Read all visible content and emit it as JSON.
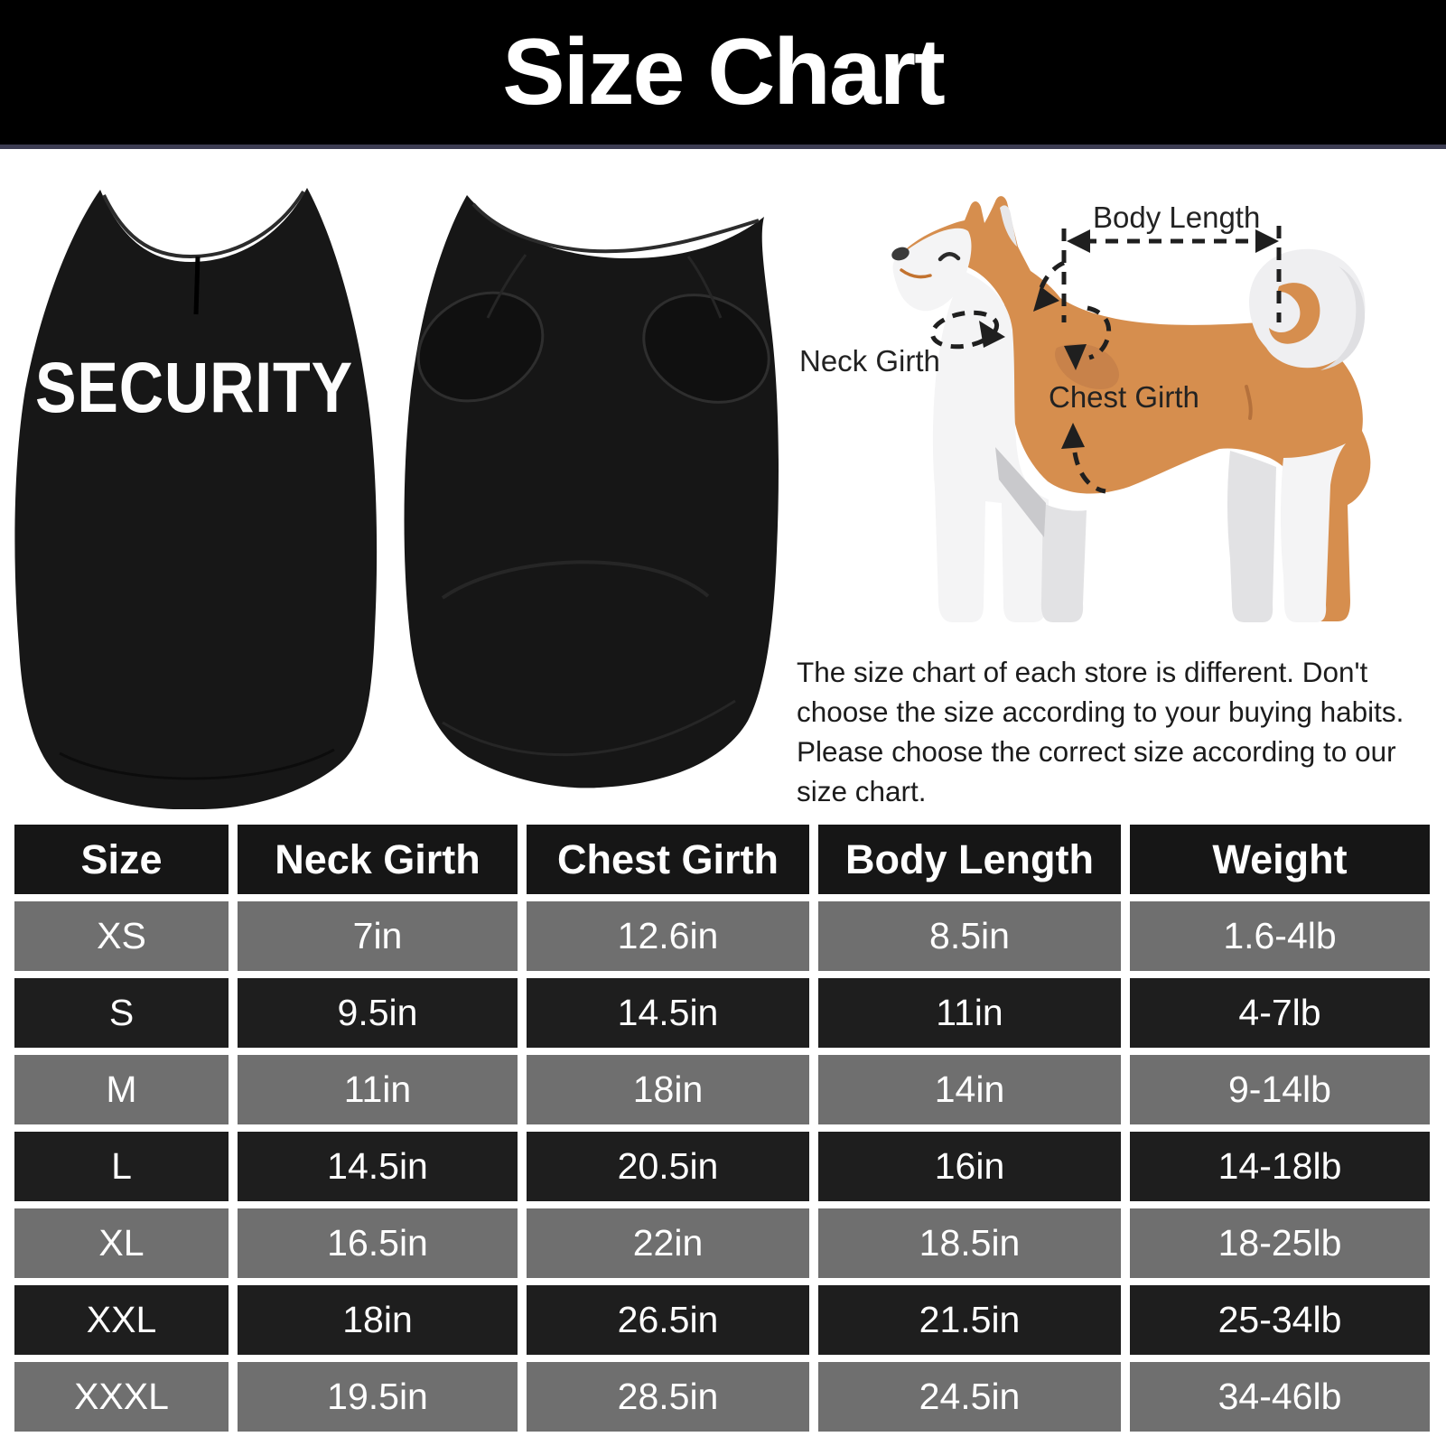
{
  "header": {
    "title": "Size Chart"
  },
  "product": {
    "front_print": "SECURITY"
  },
  "measurement_diagram": {
    "body_length_label": "Body Length",
    "neck_girth_label": "Neck Girth",
    "chest_girth_label": "Chest Girth"
  },
  "description": {
    "lines": [
      "The size chart of each store is different. Don't",
      "choose the size according to your buying habits.",
      "Please choose the correct size according to our",
      "size chart."
    ]
  },
  "chart_data": {
    "type": "table",
    "title": "Size Chart",
    "columns": [
      "Size",
      "Neck Girth",
      "Chest Girth",
      "Body Length",
      "Weight"
    ],
    "rows": [
      [
        "XS",
        "7in",
        "12.6in",
        "8.5in",
        "1.6-4lb"
      ],
      [
        "S",
        "9.5in",
        "14.5in",
        "11in",
        "4-7lb"
      ],
      [
        "M",
        "11in",
        "18in",
        "14in",
        "9-14lb"
      ],
      [
        "L",
        "14.5in",
        "20.5in",
        "16in",
        "14-18lb"
      ],
      [
        "XL",
        "16.5in",
        "22in",
        "18.5in",
        "18-25lb"
      ],
      [
        "XXL",
        "18in",
        "26.5in",
        "21.5in",
        "25-34lb"
      ],
      [
        "XXXL",
        "19.5in",
        "28.5in",
        "24.5in",
        "34-46lb"
      ]
    ]
  },
  "colors": {
    "header_bar": "#000000",
    "header_underline": "#3c3c52",
    "table_header_bg": "#161616",
    "row_dark": "#1e1e1e",
    "row_gray": "#6f6f6f",
    "table_text": "#ffffff",
    "dog_coat": "#d68e4e",
    "dog_white": "#f4f4f5",
    "shirt_black": "#171717",
    "print_white": "#fdfdfd"
  }
}
